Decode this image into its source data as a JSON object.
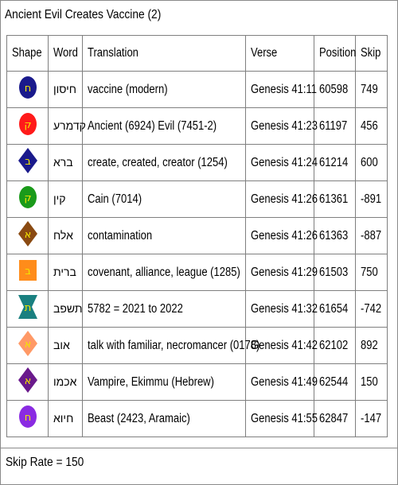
{
  "title": "Ancient Evil Creates Vaccine (2)",
  "columns": [
    "Shape",
    "Word",
    "Translation",
    "Verse",
    "Position",
    "Skip"
  ],
  "rows": [
    {
      "shape": "circle",
      "color": "#1a1a8c",
      "letter": "ח",
      "word": "חיסון",
      "translation": "vaccine (modern)",
      "verse": "Genesis 41:11",
      "position": "60598",
      "skip": "749"
    },
    {
      "shape": "circle",
      "color": "#ff1a1a",
      "letter": "ק",
      "word": "קדמרע",
      "translation": "Ancient (6924) Evil (7451-2)",
      "verse": "Genesis 41:23",
      "position": "61197",
      "skip": "456"
    },
    {
      "shape": "diamond",
      "color": "#1a1a8c",
      "letter": "ב",
      "word": "ברא",
      "translation": "create, created, creator (1254)",
      "verse": "Genesis 41:24",
      "position": "61214",
      "skip": "600"
    },
    {
      "shape": "circle",
      "color": "#1a9a1a",
      "letter": "ק",
      "word": "קין",
      "translation": "Cain (7014)",
      "verse": "Genesis 41:26",
      "position": "61361",
      "skip": "-891"
    },
    {
      "shape": "diamond",
      "color": "#8a4a12",
      "letter": "א",
      "word": "אלח",
      "translation": "contamination",
      "verse": "Genesis 41:26",
      "position": "61363",
      "skip": "-887"
    },
    {
      "shape": "square",
      "color": "#ff8c1a",
      "letter": "ב",
      "word": "ברית",
      "translation": "covenant, alliance, league (1285)",
      "verse": "Genesis 41:29",
      "position": "61503",
      "skip": "750"
    },
    {
      "shape": "hourglass",
      "color": "#1a8080",
      "letter": "ת",
      "word": "תשפב",
      "translation": "5782 = 2021 to 2022",
      "verse": "Genesis 41:32",
      "position": "61654",
      "skip": "-742"
    },
    {
      "shape": "diamond",
      "color": "#ff9966",
      "letter": "א",
      "word": "אוב",
      "translation": "talk with familiar, necromancer (0178)",
      "verse": "Genesis 41:42",
      "position": "62102",
      "skip": "892"
    },
    {
      "shape": "diamond",
      "color": "#6a1a8c",
      "letter": "א",
      "word": "אכמו",
      "translation": "Vampire, Ekimmu (Hebrew)",
      "verse": "Genesis 41:49",
      "position": "62544",
      "skip": "150"
    },
    {
      "shape": "circle",
      "color": "#8a2be2",
      "letter": "ח",
      "word": "חיוא",
      "translation": "Beast (2423, Aramaic)",
      "verse": "Genesis 41:55",
      "position": "62847",
      "skip": "-147"
    }
  ],
  "footer": "Skip Rate = 150"
}
